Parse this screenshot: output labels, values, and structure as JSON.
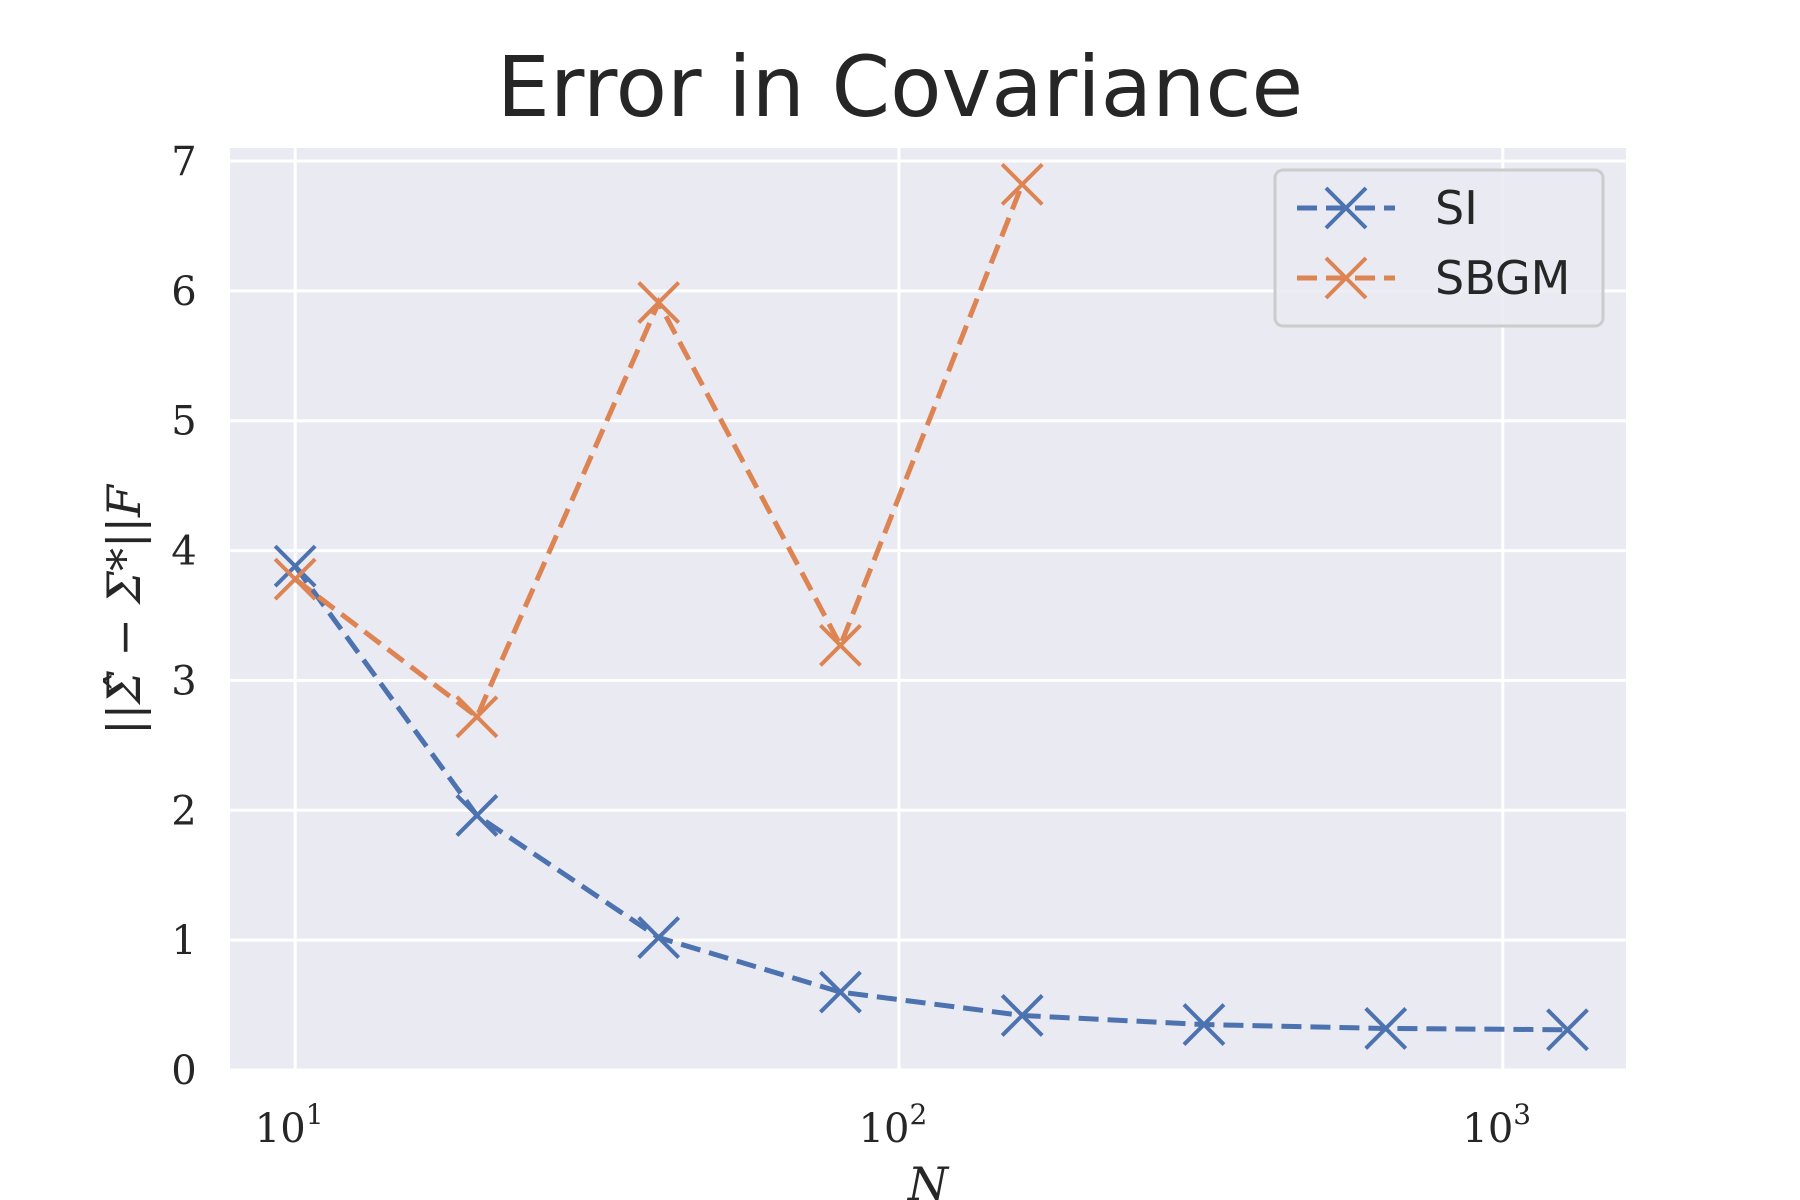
{
  "chart_data": {
    "type": "line",
    "title": "Error in Covariance",
    "xlabel": "N",
    "ylabel": "||Σ̂ − Σ*||F",
    "x_scale": "log",
    "xlim": [
      7.8,
      1600
    ],
    "ylim": [
      0,
      7.1
    ],
    "x_ticks": [
      10,
      100,
      1000
    ],
    "x_tick_labels": [
      {
        "base": "10",
        "exp": "1"
      },
      {
        "base": "10",
        "exp": "2"
      },
      {
        "base": "10",
        "exp": "3"
      }
    ],
    "y_ticks": [
      0,
      1,
      2,
      3,
      4,
      5,
      6,
      7
    ],
    "y_tick_labels": [
      "0",
      "1",
      "2",
      "3",
      "4",
      "5",
      "6",
      "7"
    ],
    "grid": true,
    "legend_position": "top-right",
    "series": [
      {
        "name": "SI",
        "color": "#4c72b0",
        "marker": "x",
        "line_style": "dashed",
        "x": [
          10,
          20,
          40,
          80,
          160,
          320,
          640,
          1280
        ],
        "y": [
          3.88,
          1.96,
          1.02,
          0.6,
          0.42,
          0.35,
          0.32,
          0.31
        ]
      },
      {
        "name": "SBGM",
        "color": "#dd8452",
        "marker": "x",
        "line_style": "dashed",
        "x": [
          10,
          20,
          40,
          80,
          160
        ],
        "y": [
          3.78,
          2.72,
          5.91,
          3.27,
          6.82
        ]
      }
    ]
  }
}
